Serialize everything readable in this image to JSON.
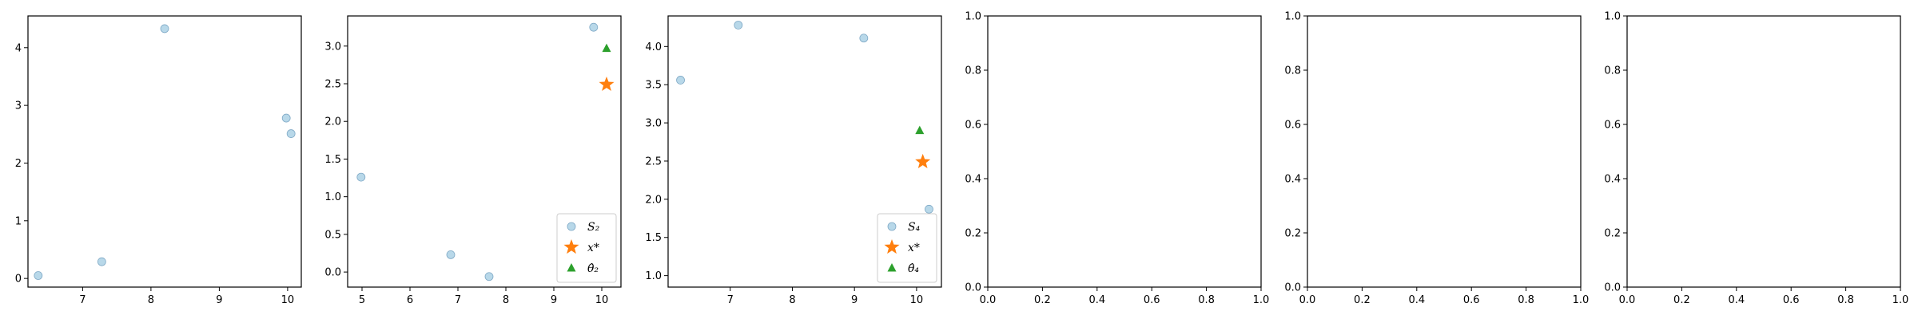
{
  "colors": {
    "samples": "#a6cee3",
    "samples_edge": "#7fa9c6",
    "optimum": "#ff7f0e",
    "estimate": "#2ca02c"
  },
  "chart_data": [
    {
      "type": "scatter",
      "xlim": [
        6.2,
        10.2
      ],
      "ylim": [
        -0.15,
        4.55
      ],
      "xticks": [
        7,
        8,
        9,
        10
      ],
      "yticks": [
        0,
        1,
        2,
        3,
        4
      ],
      "grid": false,
      "series": [
        {
          "marker": "circle",
          "color": "samples",
          "points": [
            [
              6.35,
              0.05
            ],
            [
              7.28,
              0.29
            ],
            [
              8.2,
              4.33
            ],
            [
              9.98,
              2.78
            ],
            [
              10.05,
              2.51
            ]
          ]
        }
      ],
      "legend": []
    },
    {
      "type": "scatter",
      "xlim": [
        4.7,
        10.4
      ],
      "ylim": [
        -0.2,
        3.4
      ],
      "xticks": [
        5,
        6,
        7,
        8,
        9,
        10
      ],
      "yticks": [
        0.0,
        0.5,
        1.0,
        1.5,
        2.0,
        2.5,
        3.0
      ],
      "grid": false,
      "series": [
        {
          "name": "S₂",
          "marker": "circle",
          "color": "samples",
          "points": [
            [
              4.98,
              1.26
            ],
            [
              6.85,
              0.23
            ],
            [
              7.65,
              -0.06
            ],
            [
              9.83,
              3.25
            ]
          ]
        },
        {
          "name": "x*",
          "marker": "star",
          "color": "optimum",
          "points": [
            [
              10.1,
              2.49
            ]
          ]
        },
        {
          "name": "θ̂₂",
          "marker": "triangle",
          "color": "estimate",
          "points": [
            [
              10.1,
              2.97
            ]
          ]
        }
      ],
      "legend": [
        "S₂",
        "x*",
        "θ̂₂"
      ],
      "legend_position": "lower right"
    },
    {
      "type": "scatter",
      "xlim": [
        6.0,
        10.4
      ],
      "ylim": [
        0.85,
        4.4
      ],
      "xticks": [
        7,
        8,
        9,
        10
      ],
      "yticks": [
        1.0,
        1.5,
        2.0,
        2.5,
        3.0,
        3.5,
        4.0
      ],
      "grid": false,
      "series": [
        {
          "name": "S₄",
          "marker": "circle",
          "color": "samples",
          "points": [
            [
              6.2,
              3.56
            ],
            [
              7.13,
              4.28
            ],
            [
              9.15,
              4.11
            ],
            [
              10.2,
              1.87
            ]
          ]
        },
        {
          "name": "x*",
          "marker": "star",
          "color": "optimum",
          "points": [
            [
              10.1,
              2.49
            ]
          ]
        },
        {
          "name": "θ̂₄",
          "marker": "triangle",
          "color": "estimate",
          "points": [
            [
              10.05,
              2.9
            ]
          ]
        }
      ],
      "legend": [
        "S₄",
        "x*",
        "θ̂₄"
      ],
      "legend_position": "lower right"
    },
    {
      "type": "scatter",
      "xlim": [
        0,
        1
      ],
      "ylim": [
        0,
        1
      ],
      "xticks": [
        0.0,
        0.2,
        0.4,
        0.6,
        0.8,
        1.0
      ],
      "yticks": [
        0.0,
        0.2,
        0.4,
        0.6,
        0.8,
        1.0
      ],
      "grid": false,
      "series": [],
      "legend": []
    },
    {
      "type": "scatter",
      "xlim": [
        0,
        1
      ],
      "ylim": [
        0,
        1
      ],
      "xticks": [
        0.0,
        0.2,
        0.4,
        0.6,
        0.8,
        1.0
      ],
      "yticks": [
        0.0,
        0.2,
        0.4,
        0.6,
        0.8,
        1.0
      ],
      "grid": false,
      "series": [],
      "legend": []
    },
    {
      "type": "scatter",
      "xlim": [
        0,
        1
      ],
      "ylim": [
        0,
        1
      ],
      "xticks": [
        0.0,
        0.2,
        0.4,
        0.6,
        0.8,
        1.0
      ],
      "yticks": [
        0.0,
        0.2,
        0.4,
        0.6,
        0.8,
        1.0
      ],
      "grid": false,
      "series": [],
      "legend": []
    }
  ]
}
